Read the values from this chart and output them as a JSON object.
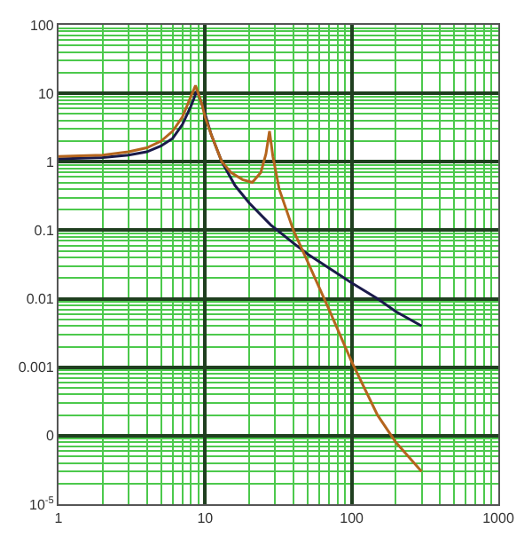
{
  "chart_data": {
    "type": "line",
    "log": "xy",
    "grid": true,
    "marker": "none",
    "line_style": "solid",
    "xlim": [
      1,
      1000
    ],
    "xticks": [
      1,
      {
        "value": 2,
        "label": null
      },
      {
        "value": 3,
        "label": null
      },
      {
        "value": 4,
        "label": null
      },
      {
        "value": 5,
        "label": null
      },
      {
        "value": 6,
        "label": null
      },
      {
        "value": 7,
        "label": null
      },
      {
        "value": 8,
        "label": null
      },
      {
        "value": 9,
        "label": null
      },
      10,
      {
        "value": 20,
        "label": null
      },
      {
        "value": 30,
        "label": null
      },
      {
        "value": 40,
        "label": null
      },
      {
        "value": 50,
        "label": null
      },
      {
        "value": 60,
        "label": null
      },
      {
        "value": 70,
        "label": null
      },
      {
        "value": 80,
        "label": null
      },
      {
        "value": 90,
        "label": null
      },
      100,
      {
        "value": 200,
        "label": null
      },
      {
        "value": 300,
        "label": null
      },
      {
        "value": 400,
        "label": null
      },
      {
        "value": 500,
        "label": null
      },
      {
        "value": 600,
        "label": null
      },
      {
        "value": 700,
        "label": null
      },
      {
        "value": 800,
        "label": null
      },
      {
        "value": 900,
        "label": null
      },
      1000
    ],
    "ylim": [
      1e-05,
      100
    ],
    "yticks": [
      {
        "value": 1e-05,
        "label": "10$^{-5}$"
      },
      {
        "value": 2e-05,
        "label": null
      },
      {
        "value": 3e-05,
        "label": null
      },
      {
        "value": 4e-05,
        "label": null
      },
      {
        "value": 5e-05,
        "label": null
      },
      {
        "value": 6e-05,
        "label": null
      },
      {
        "value": 7e-05,
        "label": null
      },
      {
        "value": 8e-05,
        "label": null
      },
      {
        "value": 9e-05,
        "label": null
      },
      {
        "value": 0.0001,
        "label": "0"
      },
      {
        "value": 0.0002,
        "label": null
      },
      {
        "value": 0.0003,
        "label": null
      },
      {
        "value": 0.0004,
        "label": null
      },
      {
        "value": 0.0005,
        "label": null
      },
      {
        "value": 0.0006,
        "label": null
      },
      {
        "value": 0.0007,
        "label": null
      },
      {
        "value": 0.0008,
        "label": null
      },
      {
        "value": 0.0009,
        "label": null
      },
      0.001,
      {
        "value": 0.002,
        "label": null
      },
      {
        "value": 0.003,
        "label": null
      },
      {
        "value": 0.004,
        "label": null
      },
      {
        "value": 0.005,
        "label": null
      },
      {
        "value": 0.006,
        "label": null
      },
      {
        "value": 0.007,
        "label": null
      },
      {
        "value": 0.008,
        "label": null
      },
      {
        "value": 0.009,
        "label": null
      },
      0.01,
      {
        "value": 0.02,
        "label": null
      },
      {
        "value": 0.03,
        "label": null
      },
      {
        "value": 0.04,
        "label": null
      },
      {
        "value": 0.05,
        "label": null
      },
      {
        "value": 0.06,
        "label": null
      },
      {
        "value": 0.07,
        "label": null
      },
      {
        "value": 0.08,
        "label": null
      },
      {
        "value": 0.09,
        "label": null
      },
      0.1,
      {
        "value": 0.2,
        "label": null
      },
      {
        "value": 0.3,
        "label": null
      },
      {
        "value": 0.4,
        "label": null
      },
      {
        "value": 0.5,
        "label": null
      },
      {
        "value": 0.6,
        "label": null
      },
      {
        "value": 0.7,
        "label": null
      },
      {
        "value": 0.8,
        "label": null
      },
      {
        "value": 0.9,
        "label": null
      },
      1,
      {
        "value": 2,
        "label": null
      },
      {
        "value": 3,
        "label": null
      },
      {
        "value": 4,
        "label": null
      },
      {
        "value": 5,
        "label": null
      },
      {
        "value": 6,
        "label": null
      },
      {
        "value": 7,
        "label": null
      },
      {
        "value": 8,
        "label": null
      },
      {
        "value": 9,
        "label": null
      },
      10,
      {
        "value": 20,
        "label": null
      },
      {
        "value": 30,
        "label": null
      },
      {
        "value": 40,
        "label": null
      },
      {
        "value": 50,
        "label": null
      },
      {
        "value": 60,
        "label": null
      },
      {
        "value": 70,
        "label": null
      },
      {
        "value": 80,
        "label": null
      },
      {
        "value": 90,
        "label": null
      },
      100
    ],
    "series": [
      {
        "color": "#1a1a4a",
        "x": [
          1,
          2,
          3,
          4,
          5,
          6,
          7,
          8,
          8.8,
          9.5,
          10,
          11,
          13,
          16,
          20,
          28,
          40,
          50,
          70,
          100,
          150,
          200,
          300
        ],
        "values": [
          1.1,
          1.15,
          1.25,
          1.4,
          1.7,
          2.2,
          3.5,
          6.5,
          11,
          7,
          5,
          2.5,
          1,
          0.45,
          0.25,
          0.12,
          0.065,
          0.045,
          0.028,
          0.017,
          0.01,
          0.0065,
          0.004
        ]
      },
      {
        "color": "#b5651d",
        "x": [
          1,
          2,
          3,
          4,
          5,
          6,
          7,
          8,
          8.6,
          9.5,
          10,
          11,
          13,
          15,
          18,
          21,
          24,
          26,
          27.5,
          29,
          32,
          40,
          50,
          70,
          100,
          150,
          200,
          300
        ],
        "values": [
          1.2,
          1.25,
          1.4,
          1.6,
          2,
          2.8,
          4.5,
          9,
          13,
          7,
          4.5,
          2.5,
          1,
          0.7,
          0.55,
          0.5,
          0.7,
          1.3,
          2.8,
          1.2,
          0.4,
          0.1,
          0.035,
          0.007,
          0.0012,
          0.0002,
          8e-05,
          3e-05
        ]
      }
    ]
  }
}
